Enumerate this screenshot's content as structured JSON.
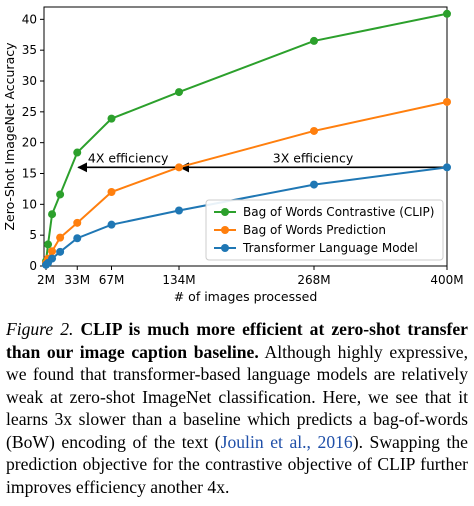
{
  "chart_data": {
    "type": "line",
    "xlabel": "# of images processed",
    "ylabel": "Zero-Shot ImageNet Accuracy",
    "xlim": [
      0,
      400
    ],
    "ylim": [
      0,
      42
    ],
    "x_ticks": [
      {
        "value": 2,
        "label": "2M"
      },
      {
        "value": 33,
        "label": "33M"
      },
      {
        "value": 67,
        "label": "67M"
      },
      {
        "value": 134,
        "label": "134M"
      },
      {
        "value": 268,
        "label": "268M"
      },
      {
        "value": 400,
        "label": "400M"
      }
    ],
    "y_ticks": [
      0,
      5,
      10,
      15,
      20,
      25,
      30,
      35,
      40
    ],
    "grid": false,
    "legend_position": "lower-right",
    "series": [
      {
        "name": "Bag of Words Contrastive (CLIP)",
        "color": "#2ca02c",
        "x": [
          2,
          4,
          8,
          16,
          33,
          67,
          134,
          268,
          400
        ],
        "y": [
          0.8,
          3.5,
          8.4,
          11.6,
          18.4,
          23.9,
          28.2,
          36.5,
          40.9
        ]
      },
      {
        "name": "Bag of Words Prediction",
        "color": "#ff7f0e",
        "x": [
          2,
          4,
          8,
          16,
          33,
          67,
          134,
          268,
          400
        ],
        "y": [
          0.5,
          1.2,
          2.4,
          4.6,
          7.0,
          12.0,
          16.0,
          21.9,
          26.6
        ]
      },
      {
        "name": "Transformer Language Model",
        "color": "#1f77b4",
        "x": [
          2,
          4,
          8,
          16,
          33,
          67,
          134,
          268,
          400
        ],
        "y": [
          0.2,
          0.5,
          1.2,
          2.3,
          4.5,
          6.7,
          9.0,
          13.2,
          16.0
        ]
      }
    ],
    "annotations": [
      {
        "text": "4X efficiency",
        "x_from": 134,
        "x_to": 33,
        "y": 16
      },
      {
        "text": "3X efficiency",
        "x_from": 400,
        "x_to": 134,
        "y": 16
      }
    ]
  },
  "caption": {
    "figure_label": "Figure 2.",
    "bold_text": "CLIP is much more efficient at zero-shot transfer than our image caption baseline.",
    "text_before_cite": "Although highly expressive, we found that transformer-based language models are relatively weak at zero-shot ImageNet classification. Here, we see that it learns 3x slower than a baseline which predicts a bag-of-words (BoW) encoding of the text (",
    "cite_text": "Joulin et al., 2016",
    "text_after_cite": "). Swapping the prediction objective for the contrastive objective of CLIP further improves efficiency another 4x."
  }
}
